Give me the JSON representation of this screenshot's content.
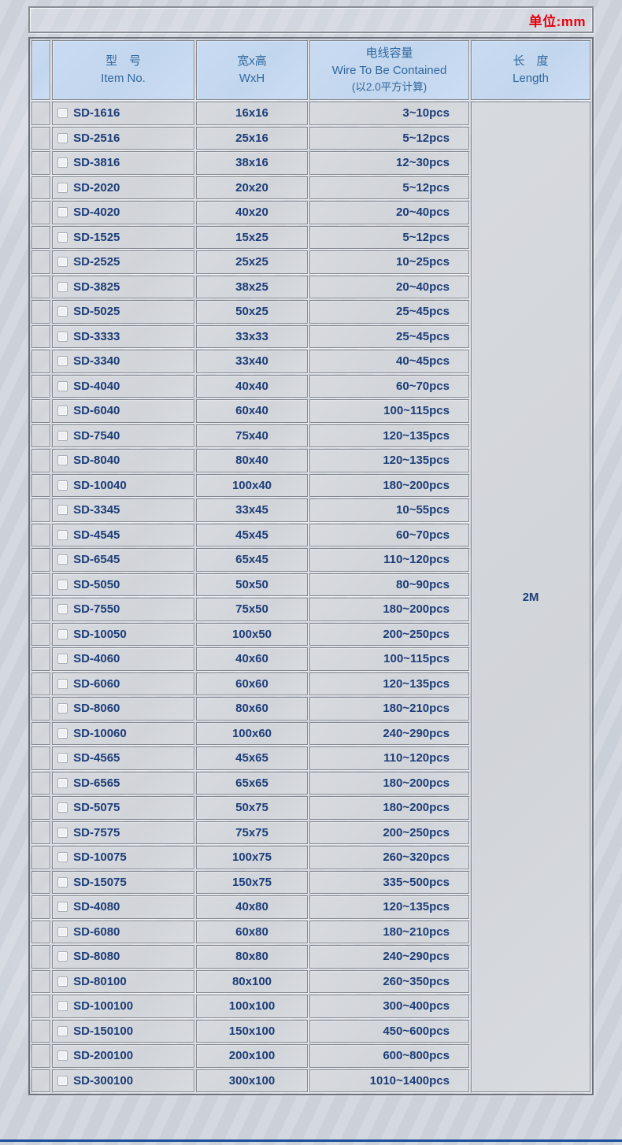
{
  "banner": {
    "unit_label": "单位:mm"
  },
  "table": {
    "headers": {
      "item": {
        "zh": "型　号",
        "en": "Item No."
      },
      "size": {
        "zh": "宽x高",
        "en": "WxH"
      },
      "capacity": {
        "zh": "电线容量",
        "en": "Wire To Be Contained",
        "note": "(以2.0平方计算)"
      },
      "length": {
        "zh": "长　度",
        "en": "Length"
      }
    },
    "length_value": "2M",
    "rows": [
      {
        "item": "SD-1616",
        "size": "16x16",
        "capacity": "3~10pcs"
      },
      {
        "item": "SD-2516",
        "size": "25x16",
        "capacity": "5~12pcs"
      },
      {
        "item": "SD-3816",
        "size": "38x16",
        "capacity": "12~30pcs"
      },
      {
        "item": "SD-2020",
        "size": "20x20",
        "capacity": "5~12pcs"
      },
      {
        "item": "SD-4020",
        "size": "40x20",
        "capacity": "20~40pcs"
      },
      {
        "item": "SD-1525",
        "size": "15x25",
        "capacity": "5~12pcs"
      },
      {
        "item": "SD-2525",
        "size": "25x25",
        "capacity": "10~25pcs"
      },
      {
        "item": "SD-3825",
        "size": "38x25",
        "capacity": "20~40pcs"
      },
      {
        "item": "SD-5025",
        "size": "50x25",
        "capacity": "25~45pcs"
      },
      {
        "item": "SD-3333",
        "size": "33x33",
        "capacity": "25~45pcs"
      },
      {
        "item": "SD-3340",
        "size": "33x40",
        "capacity": "40~45pcs"
      },
      {
        "item": "SD-4040",
        "size": "40x40",
        "capacity": "60~70pcs"
      },
      {
        "item": "SD-6040",
        "size": "60x40",
        "capacity": "100~115pcs"
      },
      {
        "item": "SD-7540",
        "size": "75x40",
        "capacity": "120~135pcs"
      },
      {
        "item": "SD-8040",
        "size": "80x40",
        "capacity": "120~135pcs"
      },
      {
        "item": "SD-10040",
        "size": "100x40",
        "capacity": "180~200pcs"
      },
      {
        "item": "SD-3345",
        "size": "33x45",
        "capacity": "10~55pcs"
      },
      {
        "item": "SD-4545",
        "size": "45x45",
        "capacity": "60~70pcs"
      },
      {
        "item": "SD-6545",
        "size": "65x45",
        "capacity": "110~120pcs"
      },
      {
        "item": "SD-5050",
        "size": "50x50",
        "capacity": "80~90pcs"
      },
      {
        "item": "SD-7550",
        "size": "75x50",
        "capacity": "180~200pcs"
      },
      {
        "item": "SD-10050",
        "size": "100x50",
        "capacity": "200~250pcs"
      },
      {
        "item": "SD-4060",
        "size": "40x60",
        "capacity": "100~115pcs"
      },
      {
        "item": "SD-6060",
        "size": "60x60",
        "capacity": "120~135pcs"
      },
      {
        "item": "SD-8060",
        "size": "80x60",
        "capacity": "180~210pcs"
      },
      {
        "item": "SD-10060",
        "size": "100x60",
        "capacity": "240~290pcs"
      },
      {
        "item": "SD-4565",
        "size": "45x65",
        "capacity": "110~120pcs"
      },
      {
        "item": "SD-6565",
        "size": "65x65",
        "capacity": "180~200pcs"
      },
      {
        "item": "SD-5075",
        "size": "50x75",
        "capacity": "180~200pcs"
      },
      {
        "item": "SD-7575",
        "size": "75x75",
        "capacity": "200~250pcs"
      },
      {
        "item": "SD-10075",
        "size": "100x75",
        "capacity": "260~320pcs"
      },
      {
        "item": "SD-15075",
        "size": "150x75",
        "capacity": "335~500pcs"
      },
      {
        "item": "SD-4080",
        "size": "40x80",
        "capacity": "120~135pcs"
      },
      {
        "item": "SD-6080",
        "size": "60x80",
        "capacity": "180~210pcs"
      },
      {
        "item": "SD-8080",
        "size": "80x80",
        "capacity": "240~290pcs"
      },
      {
        "item": "SD-80100",
        "size": "80x100",
        "capacity": "260~350pcs"
      },
      {
        "item": "SD-100100",
        "size": "100x100",
        "capacity": "300~400pcs"
      },
      {
        "item": "SD-150100",
        "size": "150x100",
        "capacity": "450~600pcs"
      },
      {
        "item": "SD-200100",
        "size": "200x100",
        "capacity": "600~800pcs"
      },
      {
        "item": "SD-300100",
        "size": "300x100",
        "capacity": "1010~1400pcs"
      }
    ]
  },
  "colors": {
    "unit_text": "#e8000d",
    "header_bg": "#c6d9f0",
    "header_text": "#31689e",
    "cell_bg": "#d4d7dc",
    "data_text": "#1c3d78",
    "bottom_line": "#1d4f9a"
  }
}
